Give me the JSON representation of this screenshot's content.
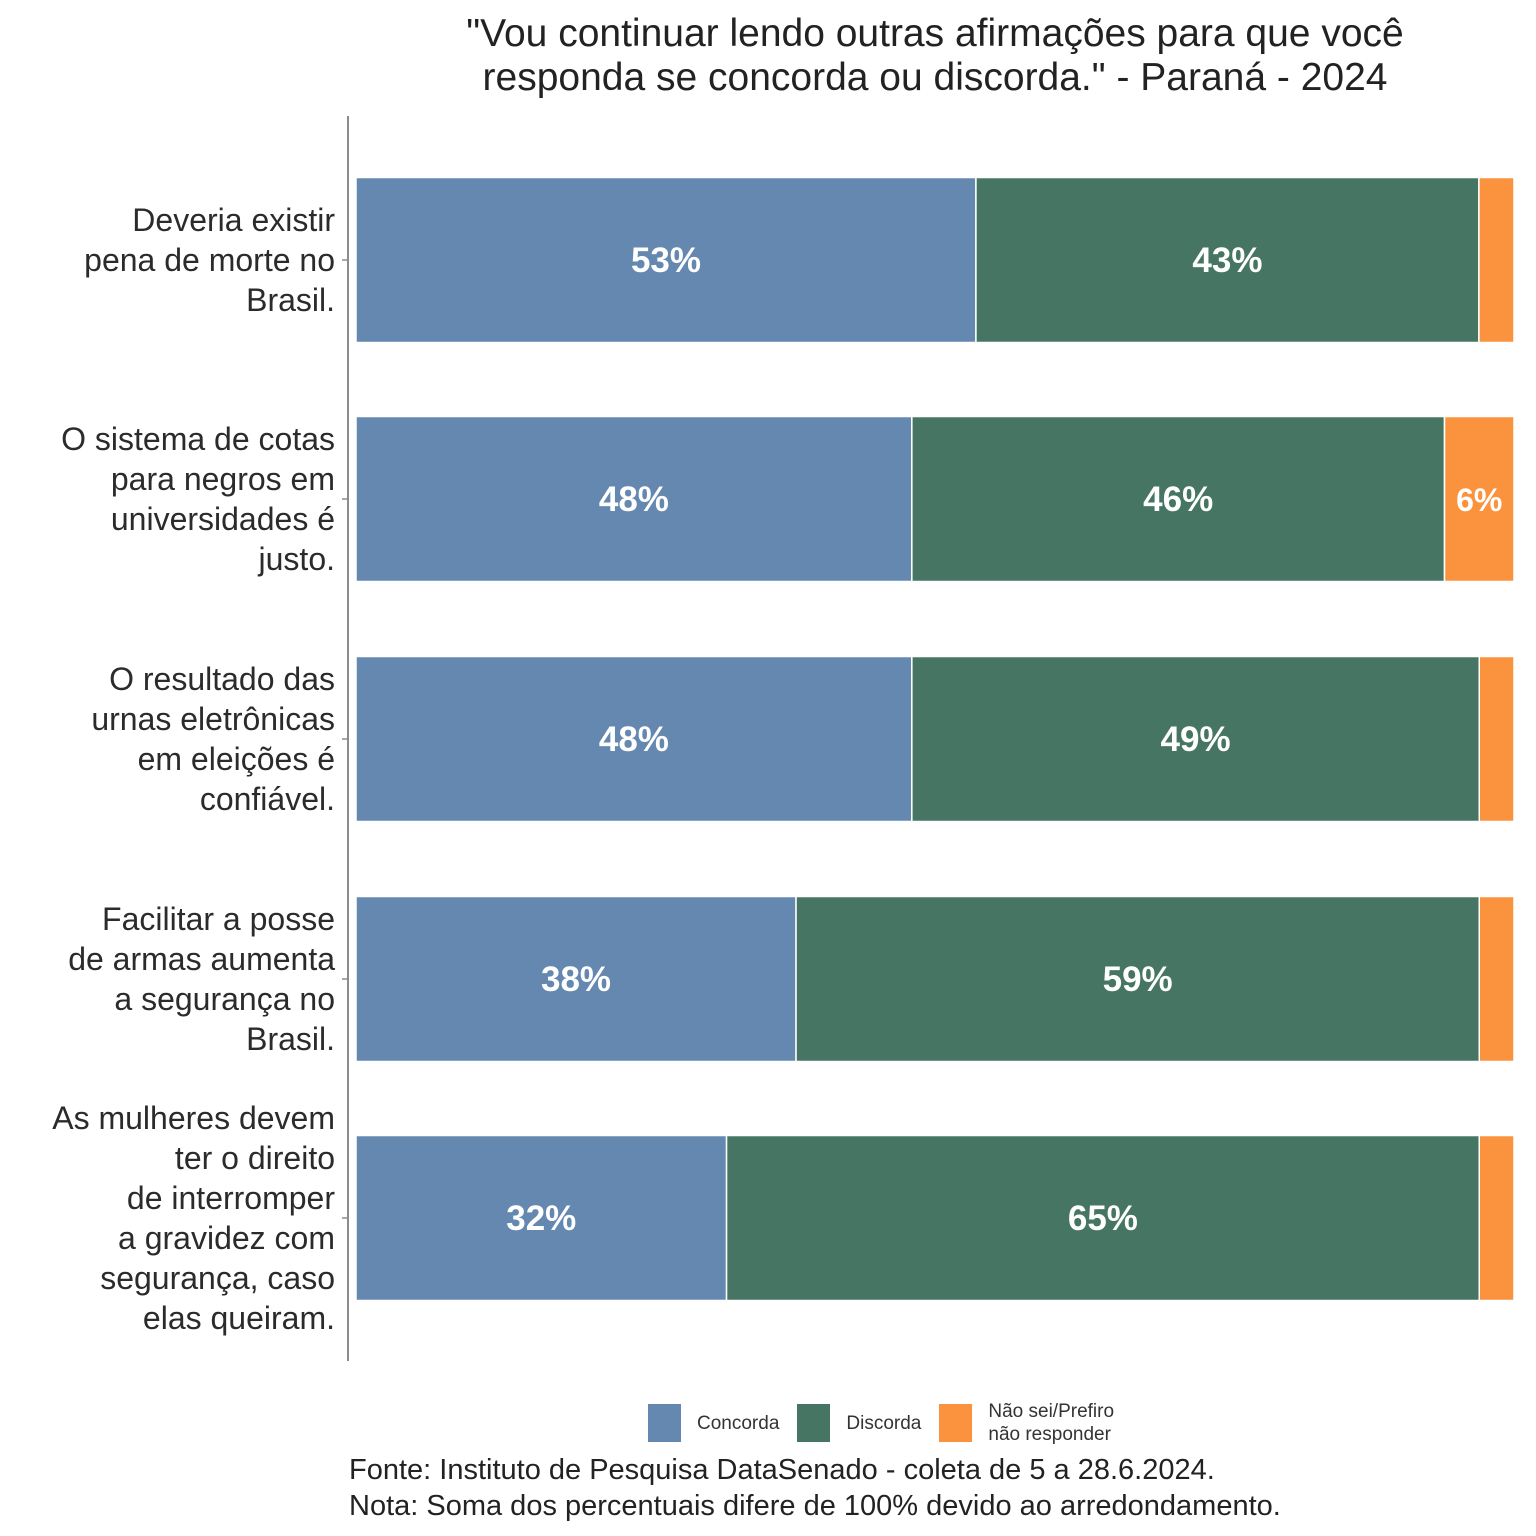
{
  "chart_data": {
    "type": "bar",
    "orientation": "horizontal-stacked",
    "title_lines": [
      "\"Vou continuar lendo outras afirmações para que você",
      "responda se concorda ou discorda.\" - Paraná - 2024"
    ],
    "categories": [
      {
        "lines": [
          "Deveria existir",
          "pena de morte no",
          "Brasil."
        ]
      },
      {
        "lines": [
          "O sistema de cotas",
          "para negros em",
          "universidades é",
          "justo."
        ]
      },
      {
        "lines": [
          "O resultado das",
          "urnas eletrônicas",
          "em eleições é",
          "confiável."
        ]
      },
      {
        "lines": [
          "Facilitar a posse",
          "de armas aumenta",
          "a segurança no",
          "Brasil."
        ]
      },
      {
        "lines": [
          "As mulheres devem",
          "ter o direito",
          "de interromper",
          "a gravidez com",
          "segurança, caso",
          "elas queiram."
        ]
      }
    ],
    "series": [
      {
        "name": "Concorda",
        "color": "#6588b0",
        "values": [
          53,
          48,
          48,
          38,
          32
        ],
        "labels": [
          "53%",
          "48%",
          "48%",
          "38%",
          "32%"
        ]
      },
      {
        "name": "Discorda",
        "color": "#467563",
        "values": [
          43,
          46,
          49,
          59,
          65
        ],
        "labels": [
          "43%",
          "46%",
          "49%",
          "59%",
          "65%"
        ]
      },
      {
        "name": "Não sei/Prefiro não responder",
        "color": "#fb923e",
        "values": [
          3,
          6,
          3,
          3,
          3
        ],
        "labels": [
          "",
          "6%",
          "",
          "",
          ""
        ]
      }
    ],
    "xlim": [
      0,
      100
    ],
    "xlabel": "",
    "ylabel": "",
    "grid": false,
    "legend_position": "bottom",
    "legend_lines": [
      [
        "Concorda"
      ],
      [
        "Discorda"
      ],
      [
        "Não sei/Prefiro",
        "não responder"
      ]
    ]
  },
  "footer": {
    "source": "Fonte: Instituto de Pesquisa DataSenado - coleta de 5 a 28.6.2024.",
    "note": "Nota: Soma dos percentuais difere de 100% devido ao arredondamento."
  }
}
